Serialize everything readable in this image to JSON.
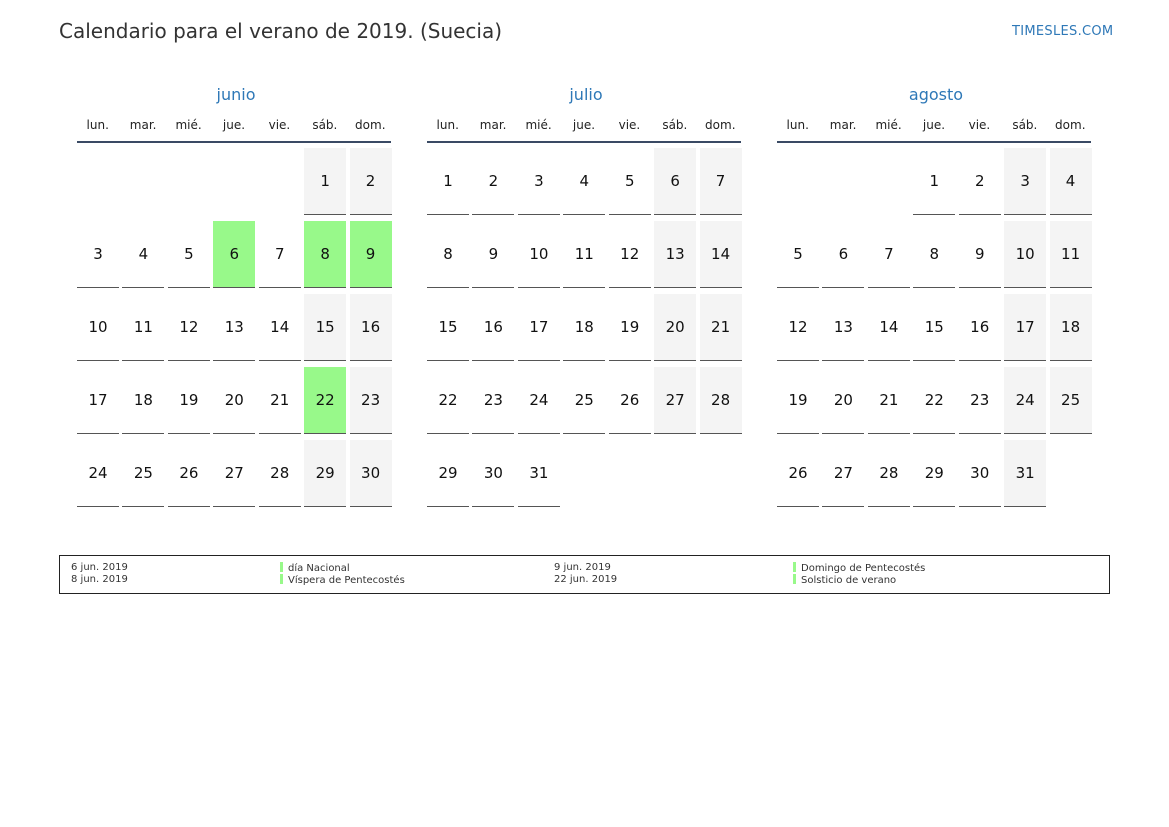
{
  "header": {
    "title": "Calendario para el verano de 2019. (Suecia)",
    "brand": "TIMESLES.COM"
  },
  "colors": {
    "holiday": "#98f98a",
    "weekend": "#f4f4f4",
    "accent": "#2e78b7"
  },
  "weekdays": [
    "lun.",
    "mar.",
    "mié.",
    "jue.",
    "vie.",
    "sáb.",
    "dom."
  ],
  "months": [
    {
      "name": "junio",
      "start_weekday": 5,
      "days": 30,
      "holidays": [
        6,
        8,
        9,
        22
      ]
    },
    {
      "name": "julio",
      "start_weekday": 0,
      "days": 31,
      "holidays": []
    },
    {
      "name": "agosto",
      "start_weekday": 3,
      "days": 31,
      "holidays": []
    }
  ],
  "legend": [
    {
      "date": "6 jun. 2019",
      "name": "día Nacional"
    },
    {
      "date": "8 jun. 2019",
      "name": "Víspera de Pentecostés"
    },
    {
      "date": "9 jun. 2019",
      "name": "Domingo de Pentecostés"
    },
    {
      "date": "22 jun. 2019",
      "name": "Solsticio de verano"
    }
  ]
}
